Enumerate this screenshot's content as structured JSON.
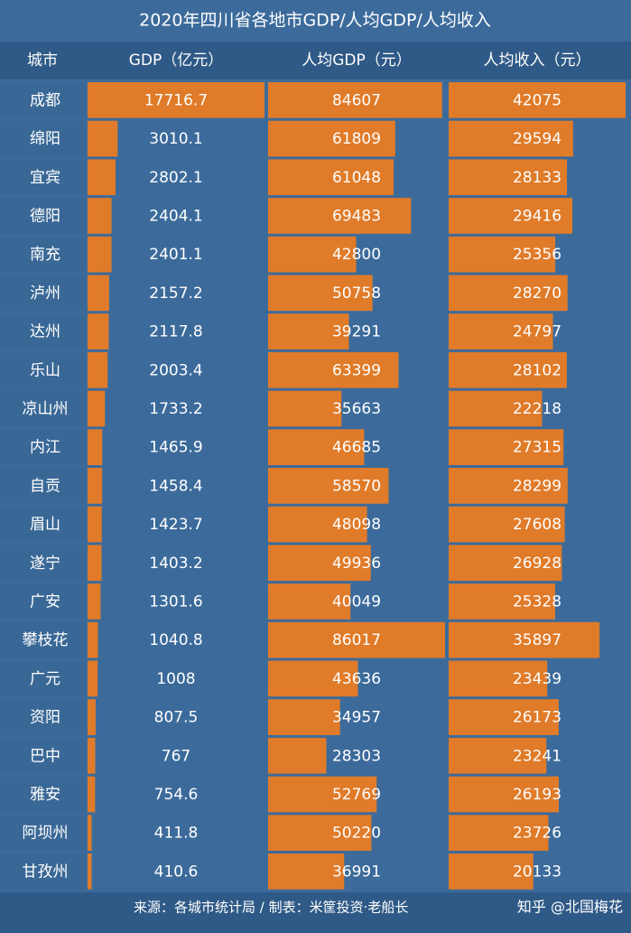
{
  "title": "2020年四川省各地市GDP/人均GDP/人均收入",
  "headers": [
    "城市",
    "GDP（亿元）",
    "人均GDP（元）",
    "人均收入（元）"
  ],
  "rows": [
    [
      "成都",
      17716.7,
      84607,
      42075
    ],
    [
      "绵阳",
      3010.1,
      61809,
      29594
    ],
    [
      "宜宾",
      2802.1,
      61048,
      28133
    ],
    [
      "德阳",
      2404.1,
      69483,
      29416
    ],
    [
      "南充",
      2401.1,
      42800,
      25356
    ],
    [
      "泸州",
      2157.2,
      50758,
      28270
    ],
    [
      "达州",
      2117.8,
      39291,
      24797
    ],
    [
      "乐山",
      2003.4,
      63399,
      28102
    ],
    [
      "凉山州",
      1733.2,
      35663,
      22218
    ],
    [
      "内江",
      1465.9,
      46685,
      27315
    ],
    [
      "自贡",
      1458.4,
      58570,
      28299
    ],
    [
      "眉山",
      1423.7,
      48098,
      27608
    ],
    [
      "遂宁",
      1403.2,
      49936,
      26928
    ],
    [
      "广安",
      1301.6,
      40049,
      25328
    ],
    [
      "攀枝花",
      1040.8,
      86017,
      35897
    ],
    [
      "广元",
      1008,
      43636,
      23439
    ],
    [
      "资阳",
      807.5,
      34957,
      26173
    ],
    [
      "巴中",
      767,
      28303,
      23241
    ],
    [
      "雅安",
      754.6,
      52769,
      26193
    ],
    [
      "阿坝州",
      411.8,
      50220,
      23726
    ],
    [
      "甘孜州",
      410.6,
      36991,
      20133
    ]
  ],
  "source": "来源：各城市统计局 / 制表：米筐投资·老船长",
  "credit": "知乎 @北国梅花"
}
